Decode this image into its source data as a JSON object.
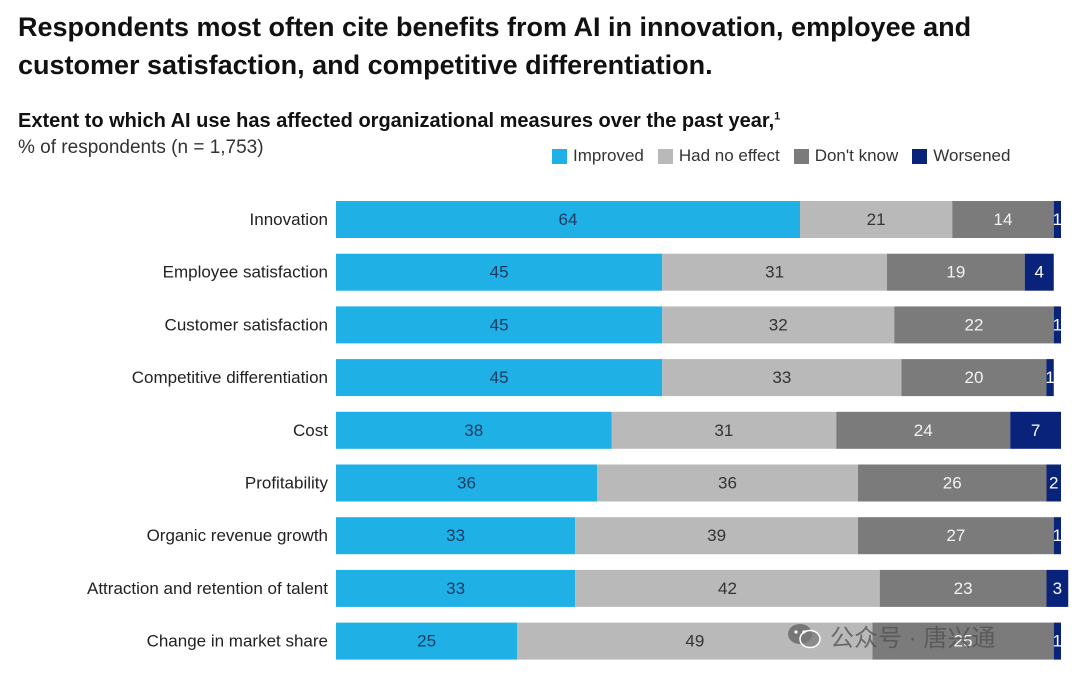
{
  "headline": "Respondents most often cite benefits from AI in innovation, employee and customer satisfaction, and competitive differentiation.",
  "subtitle": "Extent to which AI use has affected organizational measures over the past year,",
  "footnote_mark": "1",
  "units": "% of respondents (n = 1,753)",
  "watermark": "公众号 · 唐兴通",
  "colors": {
    "improved": "#1fb1e6",
    "no_effect": "#b9b9b9",
    "dont_know": "#7b7b7b",
    "worsened": "#0a237a"
  },
  "chart_data": {
    "type": "bar",
    "orientation": "horizontal",
    "stacked": true,
    "title": "Extent to which AI use has affected organizational measures over the past year",
    "xlabel": "% of respondents (n = 1,753)",
    "ylabel": "",
    "xlim": [
      0,
      100
    ],
    "legend_position": "top-right",
    "grid": false,
    "categories": [
      "Innovation",
      "Employee satisfaction",
      "Customer satisfaction",
      "Competitive differentiation",
      "Cost",
      "Profitability",
      "Organic revenue growth",
      "Attraction and retention of talent",
      "Change in market share"
    ],
    "series": [
      {
        "name": "Improved",
        "color": "#1fb1e6",
        "label_color": "#1d3b63",
        "values": [
          64,
          45,
          45,
          45,
          38,
          36,
          33,
          33,
          25
        ]
      },
      {
        "name": "Had no effect",
        "color": "#b9b9b9",
        "label_color": "#333333",
        "values": [
          21,
          31,
          32,
          33,
          31,
          36,
          39,
          42,
          49
        ]
      },
      {
        "name": "Don't know",
        "color": "#7b7b7b",
        "label_color": "#f2f2f2",
        "values": [
          14,
          19,
          22,
          20,
          24,
          26,
          27,
          23,
          25
        ]
      },
      {
        "name": "Worsened",
        "color": "#0a237a",
        "label_color": "#ffffff",
        "values": [
          1,
          4,
          1,
          1,
          7,
          2,
          1,
          3,
          1
        ]
      }
    ]
  }
}
